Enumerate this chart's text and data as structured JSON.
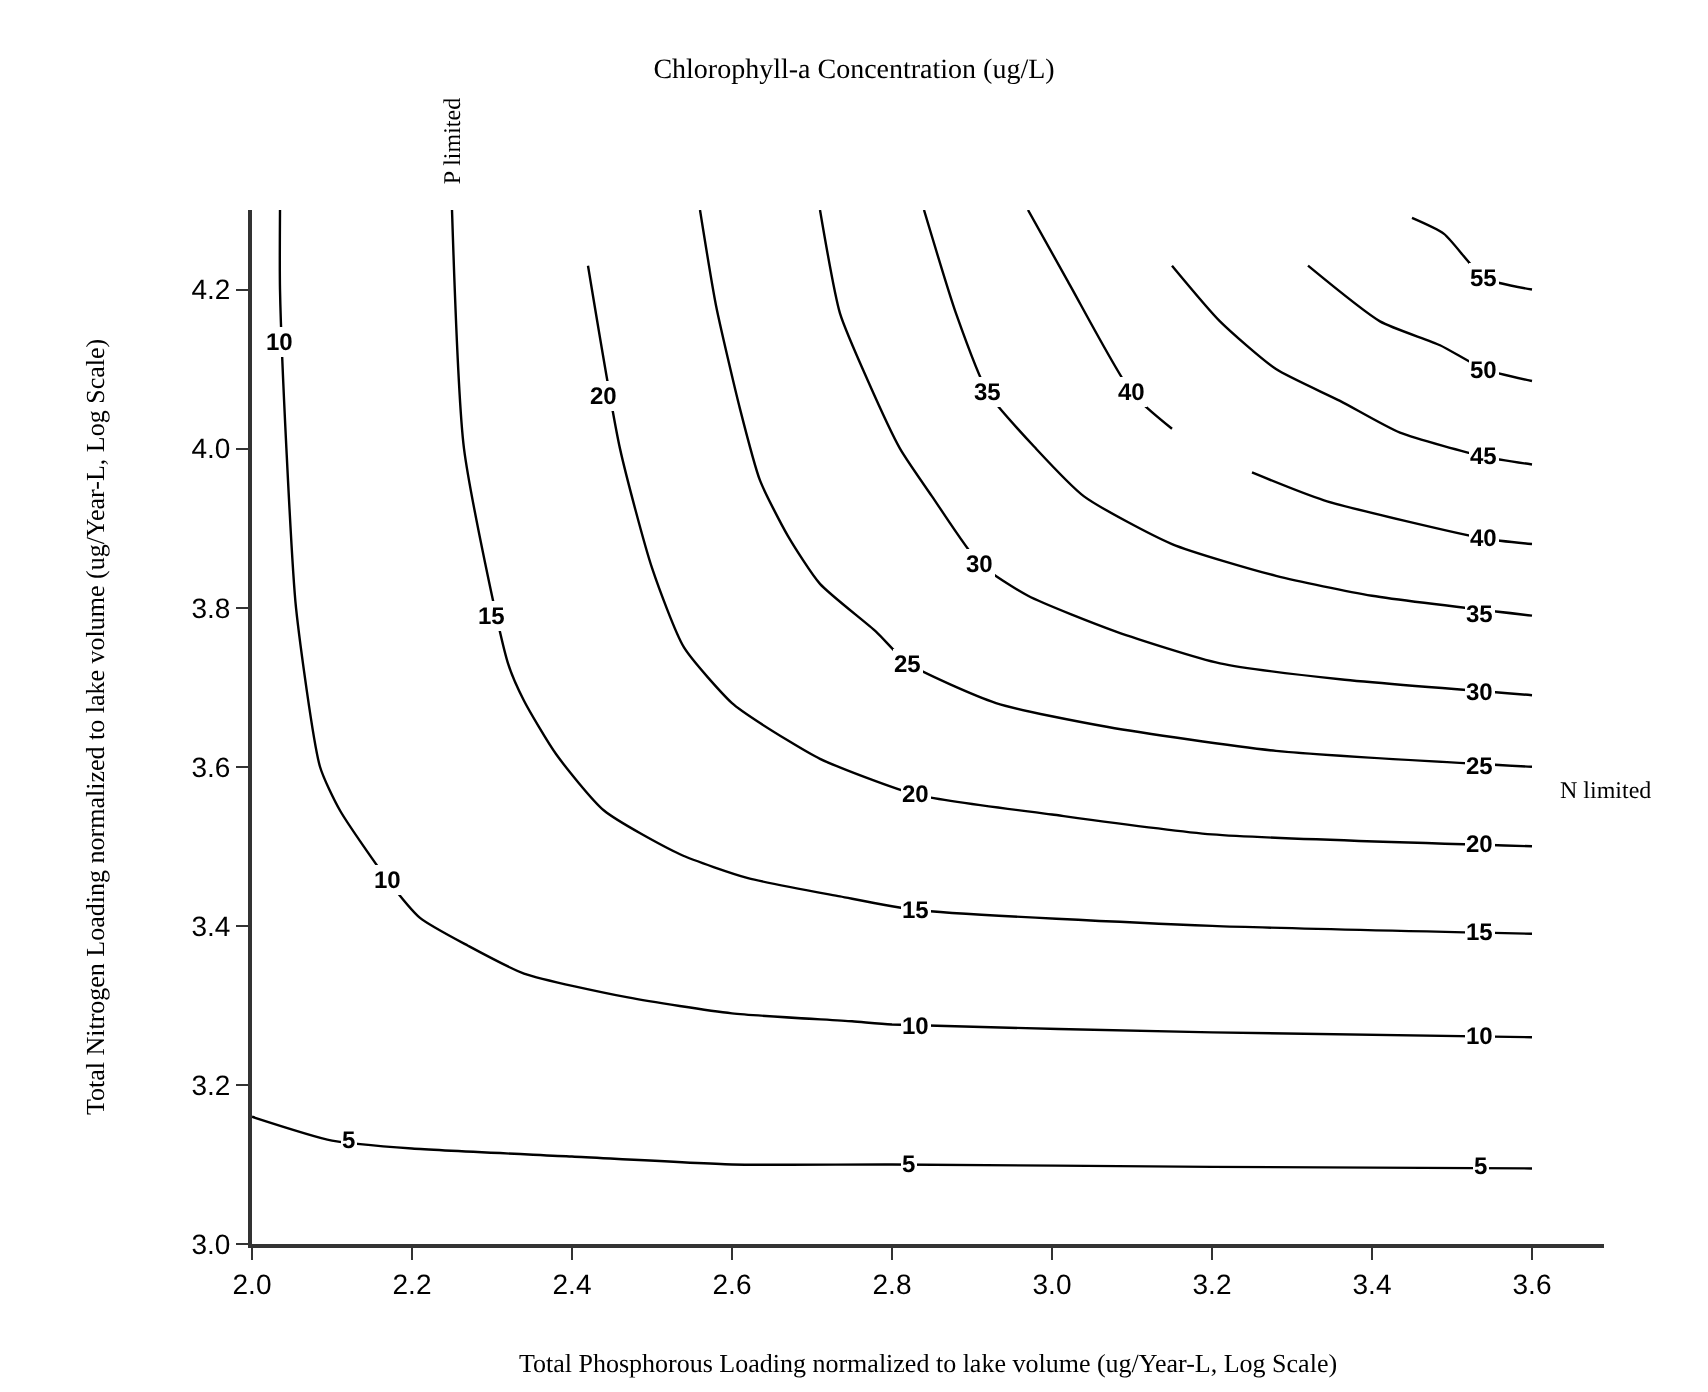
{
  "chart_data": {
    "type": "line",
    "title": "Chlorophyll-a Concentration (ug/L)",
    "xlabel": "Total Phosphorous Loading normalized to lake volume (ug/Year-L, Log Scale)",
    "ylabel": "Total Nitrogen Loading normalized to lake volume (ug/Year-L, Log Scale)",
    "xlim": [
      2.0,
      3.69
    ],
    "ylim": [
      3.0,
      4.3
    ],
    "xticks": [
      {
        "value": 2.0,
        "label": "2.0"
      },
      {
        "value": 2.2,
        "label": "2.2"
      },
      {
        "value": 2.4,
        "label": "2.4"
      },
      {
        "value": 2.6,
        "label": "2.6"
      },
      {
        "value": 2.8,
        "label": "2.8"
      },
      {
        "value": 3.0,
        "label": "3.0"
      },
      {
        "value": 3.2,
        "label": "3.2"
      },
      {
        "value": 3.4,
        "label": "3.4"
      },
      {
        "value": 3.6,
        "label": "3.6"
      }
    ],
    "yticks": [
      {
        "value": 3.0,
        "label": "3.0"
      },
      {
        "value": 3.2,
        "label": "3.2"
      },
      {
        "value": 3.4,
        "label": "3.4"
      },
      {
        "value": 3.6,
        "label": "3.6"
      },
      {
        "value": 3.8,
        "label": "3.8"
      },
      {
        "value": 4.0,
        "label": "4.0"
      },
      {
        "value": 4.2,
        "label": "4.2"
      }
    ],
    "marker": "none",
    "line_style": "solid",
    "series": [
      {
        "color": "#000000",
        "x": [
          2.0,
          2.1,
          2.2,
          2.4,
          2.6,
          2.8,
          3.2,
          3.6
        ],
        "values": [
          3.16,
          3.13,
          3.12,
          3.11,
          3.1,
          3.1,
          3.097,
          3.095
        ]
      },
      {
        "color": "#000000",
        "x": [
          2.035,
          2.035,
          2.043,
          2.055,
          2.085,
          2.11,
          2.17,
          2.21,
          2.27,
          2.34,
          2.47,
          2.6,
          2.75,
          2.8,
          3.2,
          3.6
        ],
        "values": [
          4.3,
          4.2,
          4.0,
          3.8,
          3.6,
          3.545,
          3.457,
          3.41,
          3.375,
          3.34,
          3.31,
          3.29,
          3.28,
          3.276,
          3.266,
          3.26
        ]
      },
      {
        "color": "#000000",
        "x": [
          2.25,
          2.265,
          2.32,
          2.34,
          2.38,
          2.44,
          2.535,
          2.62,
          2.735,
          2.83,
          3.2,
          3.6
        ],
        "values": [
          4.3,
          4.0,
          3.73,
          3.683,
          3.616,
          3.545,
          3.49,
          3.46,
          3.437,
          3.42,
          3.4,
          3.39
        ]
      },
      {
        "color": "#000000",
        "x": [
          2.42,
          2.46,
          2.5,
          2.54,
          2.6,
          2.635,
          2.71,
          2.83,
          3.0,
          3.2,
          3.6
        ],
        "values": [
          4.23,
          4.0,
          3.85,
          3.75,
          3.68,
          3.655,
          3.61,
          3.565,
          3.54,
          3.515,
          3.5
        ]
      },
      {
        "color": "#000000",
        "x": [
          2.56,
          2.58,
          2.61,
          2.635,
          2.67,
          2.71,
          2.78,
          2.82,
          2.93,
          3.07,
          3.28,
          3.6
        ],
        "values": [
          4.3,
          4.18,
          4.05,
          3.96,
          3.89,
          3.83,
          3.77,
          3.73,
          3.68,
          3.65,
          3.62,
          3.6
        ]
      },
      {
        "color": "#000000",
        "x": [
          2.71,
          2.735,
          2.77,
          2.81,
          2.85,
          2.91,
          2.97,
          3.08,
          3.21,
          3.36,
          3.6
        ],
        "values": [
          4.3,
          4.17,
          4.085,
          4.0,
          3.94,
          3.855,
          3.815,
          3.77,
          3.73,
          3.71,
          3.69
        ]
      },
      {
        "color": "#000000",
        "x": [
          2.84,
          2.88,
          2.92,
          2.98,
          3.04,
          3.15,
          3.28,
          3.4,
          3.6
        ],
        "values": [
          4.3,
          4.17,
          4.07,
          4.0,
          3.94,
          3.88,
          3.84,
          3.815,
          3.79
        ]
      },
      {
        "color": "#000000",
        "x": [
          2.97,
          3.02,
          3.1,
          3.15
        ],
        "values": [
          4.3,
          4.21,
          4.07,
          4.025
        ]
      },
      {
        "color": "#000000",
        "x": [
          3.25,
          3.34,
          3.54,
          3.6
        ],
        "values": [
          3.97,
          3.935,
          3.887,
          3.88
        ]
      },
      {
        "color": "#000000",
        "x": [
          3.15,
          3.21,
          3.28,
          3.36,
          3.435,
          3.54,
          3.6
        ],
        "values": [
          4.23,
          4.16,
          4.1,
          4.06,
          4.02,
          3.99,
          3.98
        ]
      },
      {
        "color": "#000000",
        "x": [
          3.32,
          3.41,
          3.485,
          3.54,
          3.6
        ],
        "values": [
          4.23,
          4.16,
          4.13,
          4.1,
          4.085
        ]
      },
      {
        "color": "#000000",
        "x": [
          3.45,
          3.49,
          3.54,
          3.6
        ],
        "values": [
          4.29,
          4.27,
          4.215,
          4.2
        ]
      }
    ],
    "annotations": [
      "P limited",
      "N limited",
      {
        "text": "5",
        "x": 2.12,
        "y": 3.13
      },
      {
        "text": "5",
        "x": 2.82,
        "y": 3.1
      },
      {
        "text": "5",
        "x": 3.535,
        "y": 3.097
      },
      {
        "text": "10",
        "x": 2.035,
        "y": 4.135
      },
      {
        "text": "10",
        "x": 2.17,
        "y": 3.457
      },
      {
        "text": "10",
        "x": 2.83,
        "y": 3.275
      },
      {
        "text": "10",
        "x": 3.535,
        "y": 3.262
      },
      {
        "text": "15",
        "x": 2.3,
        "y": 3.79
      },
      {
        "text": "15",
        "x": 2.83,
        "y": 3.42
      },
      {
        "text": "15",
        "x": 3.535,
        "y": 3.392
      },
      {
        "text": "20",
        "x": 2.44,
        "y": 4.065
      },
      {
        "text": "20",
        "x": 2.83,
        "y": 3.565
      },
      {
        "text": "20",
        "x": 3.535,
        "y": 3.502
      },
      {
        "text": "25",
        "x": 2.82,
        "y": 3.73
      },
      {
        "text": "25",
        "x": 3.535,
        "y": 3.602
      },
      {
        "text": "30",
        "x": 2.91,
        "y": 3.855
      },
      {
        "text": "30",
        "x": 3.535,
        "y": 3.693
      },
      {
        "text": "35",
        "x": 2.92,
        "y": 4.07
      },
      {
        "text": "35",
        "x": 3.535,
        "y": 3.793
      },
      {
        "text": "40",
        "x": 3.1,
        "y": 4.07
      },
      {
        "text": "40",
        "x": 3.54,
        "y": 3.887
      },
      {
        "text": "45",
        "x": 3.54,
        "y": 3.99
      },
      {
        "text": "50",
        "x": 3.54,
        "y": 4.1
      },
      {
        "text": "55",
        "x": 3.54,
        "y": 4.215
      }
    ]
  }
}
